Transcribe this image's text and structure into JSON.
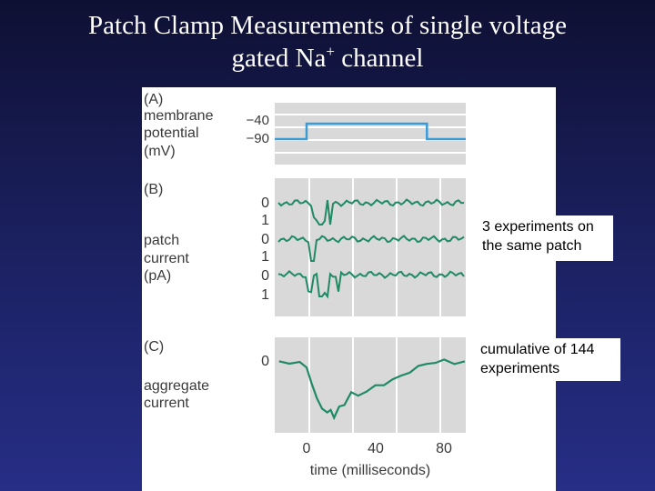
{
  "slide": {
    "title_line1": "Patch Clamp Measurements of single voltage",
    "title_line2_pre": "gated Na",
    "title_line2_sup": "+",
    "title_line2_post": " channel"
  },
  "figure": {
    "panel_a": {
      "tag": "(A)",
      "label_lines": [
        "membrane",
        "potential",
        "(mV)"
      ],
      "tick_high": "−40",
      "tick_low": "−90",
      "voltage_step": [
        [
          0,
          -90
        ],
        [
          0,
          -40
        ],
        [
          70,
          -40
        ],
        [
          70,
          -90
        ]
      ],
      "colors": {
        "trace": "#3a9bd5",
        "band": "#d9d9d9"
      }
    },
    "panel_b": {
      "tag": "(B)",
      "label_lines": [
        "patch",
        "current",
        "(pA)"
      ],
      "tick_labels": [
        "0",
        "1",
        "0",
        "1",
        "0",
        "1"
      ],
      "traces": [
        {
          "events": [
            [
              3,
              12
            ]
          ],
          "spikes": [
            8,
            14
          ]
        },
        {
          "events": [],
          "spikes": [
            3,
            4
          ]
        },
        {
          "events": [
            [
              0,
              3
            ],
            [
              6,
              13
            ],
            [
              17,
              20
            ]
          ],
          "spikes": [
            8,
            12
          ]
        }
      ],
      "colors": {
        "trace": "#1f8a64",
        "band": "#d9d9d9"
      }
    },
    "panel_c": {
      "tag": "(C)",
      "label_lines": [
        "aggregate",
        "current"
      ],
      "tick_zero": "0",
      "x_ticks": [
        "0",
        "40",
        "80"
      ],
      "x_label": "time (milliseconds)",
      "aggregate": [
        [
          -16,
          0.02
        ],
        [
          -10,
          0.04
        ],
        [
          -4,
          0.06
        ],
        [
          0,
          0.1
        ],
        [
          3,
          0.4
        ],
        [
          6,
          0.65
        ],
        [
          9,
          0.78
        ],
        [
          12,
          0.9
        ],
        [
          14,
          0.82
        ],
        [
          16,
          0.95
        ],
        [
          19,
          0.8
        ],
        [
          22,
          0.72
        ],
        [
          26,
          0.55
        ],
        [
          30,
          0.6
        ],
        [
          35,
          0.5
        ],
        [
          40,
          0.45
        ],
        [
          45,
          0.4
        ],
        [
          50,
          0.32
        ],
        [
          55,
          0.28
        ],
        [
          60,
          0.18
        ],
        [
          65,
          0.12
        ],
        [
          70,
          0.06
        ],
        [
          75,
          0.03
        ],
        [
          80,
          0.02
        ],
        [
          86,
          0.04
        ],
        [
          92,
          0.03
        ]
      ],
      "colors": {
        "trace": "#1f8a64",
        "band": "#d9d9d9"
      }
    }
  },
  "callouts": {
    "experiments": [
      "3 experiments on",
      "the same patch"
    ],
    "cumulative": [
      "cumulative of 144",
      "experiments"
    ]
  }
}
